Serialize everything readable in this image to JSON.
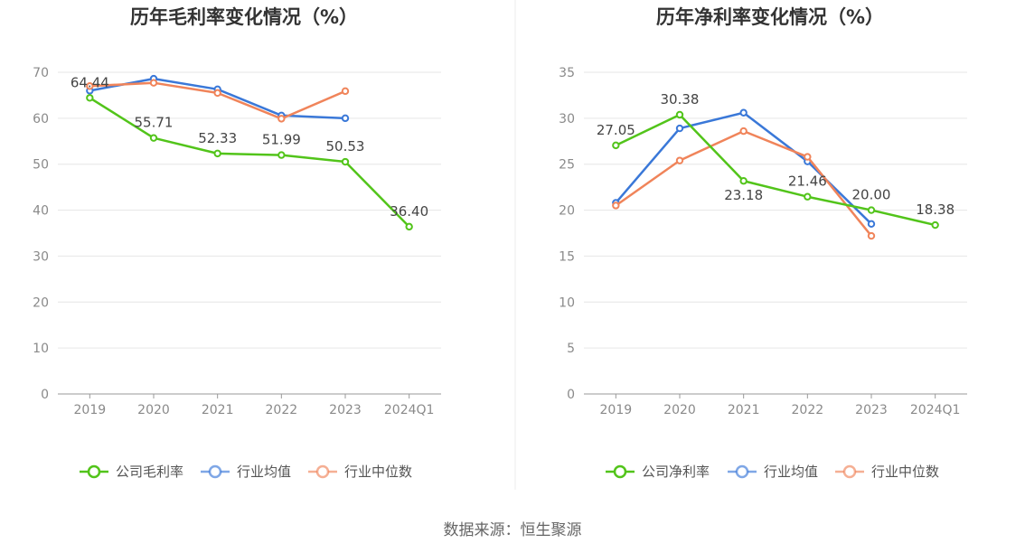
{
  "source_text": "数据来源：恒生聚源",
  "colors": {
    "company": "#52c41a",
    "avg": "#3a78d8",
    "median": "#f0845a",
    "grid": "#e6e6e6",
    "axis": "#999999",
    "divider": "#eeeeee"
  },
  "chart_data": [
    {
      "type": "line",
      "title": "历年毛利率变化情况（%）",
      "categories": [
        "2019",
        "2020",
        "2021",
        "2022",
        "2023",
        "2024Q1"
      ],
      "ylim": [
        0,
        70
      ],
      "yticks": [
        "0",
        "10",
        "20",
        "30",
        "40",
        "50",
        "60",
        "70"
      ],
      "grid": true,
      "legend_position": "bottom",
      "series": [
        {
          "name": "公司毛利率",
          "key": "company",
          "values": [
            64.44,
            55.71,
            52.33,
            51.99,
            50.53,
            36.4
          ],
          "labels": [
            "64.44",
            "55.71",
            "52.33",
            "51.99",
            "50.53",
            "36.40"
          ]
        },
        {
          "name": "行业均值",
          "key": "avg",
          "values": [
            66.0,
            68.6,
            66.3,
            60.6,
            60.0,
            null
          ]
        },
        {
          "name": "行业中位数",
          "key": "median",
          "values": [
            67.0,
            67.7,
            65.5,
            59.9,
            65.9,
            null
          ]
        }
      ]
    },
    {
      "type": "line",
      "title": "历年净利率变化情况（%）",
      "categories": [
        "2019",
        "2020",
        "2021",
        "2022",
        "2023",
        "2024Q1"
      ],
      "ylim": [
        0,
        35
      ],
      "yticks": [
        "0",
        "5",
        "10",
        "15",
        "20",
        "25",
        "30",
        "35"
      ],
      "grid": true,
      "legend_position": "bottom",
      "series": [
        {
          "name": "公司净利率",
          "key": "company",
          "values": [
            27.05,
            30.38,
            23.18,
            21.46,
            20.0,
            18.38
          ],
          "labels": [
            "27.05",
            "30.38",
            "23.18",
            "21.46",
            "20.00",
            "18.38"
          ]
        },
        {
          "name": "行业均值",
          "key": "avg",
          "values": [
            20.8,
            28.9,
            30.6,
            25.3,
            18.5,
            null
          ]
        },
        {
          "name": "行业中位数",
          "key": "median",
          "values": [
            20.5,
            25.4,
            28.6,
            25.8,
            17.2,
            null
          ]
        }
      ]
    }
  ]
}
